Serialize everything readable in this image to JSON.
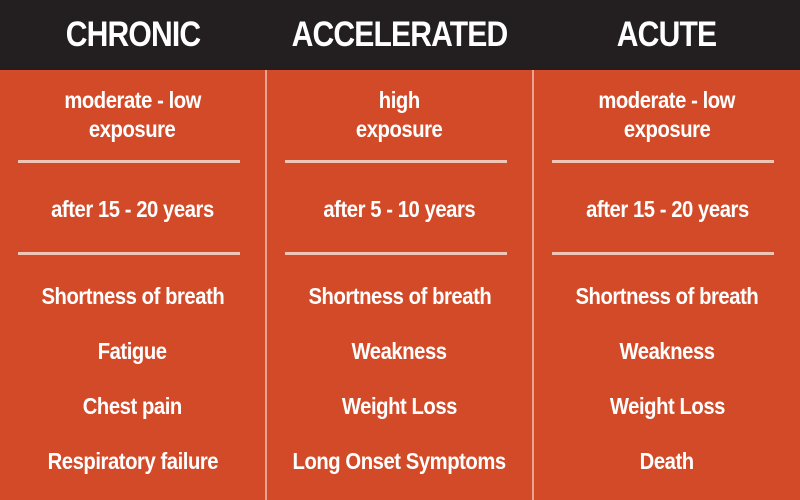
{
  "colors": {
    "background": "#d24a27",
    "header": "#231f20",
    "text": "#ffffff"
  },
  "columns": [
    {
      "title": "CHRONIC",
      "exposure_line1": "moderate - low",
      "exposure_line2": "exposure",
      "onset": "after 15 - 20 years",
      "symptoms": [
        "Shortness of breath",
        "Fatigue",
        "Chest pain",
        "Respiratory failure"
      ]
    },
    {
      "title": "ACCELERATED",
      "exposure_line1": "high",
      "exposure_line2": "exposure",
      "onset": "after 5 - 10 years",
      "symptoms": [
        "Shortness of breath",
        "Weakness",
        "Weight Loss",
        "Long Onset Symptoms"
      ]
    },
    {
      "title": "ACUTE",
      "exposure_line1": "moderate - low",
      "exposure_line2": "exposure",
      "onset": "after 15 - 20 years",
      "symptoms": [
        "Shortness of breath",
        "Weakness",
        "Weight Loss",
        "Death"
      ]
    }
  ]
}
